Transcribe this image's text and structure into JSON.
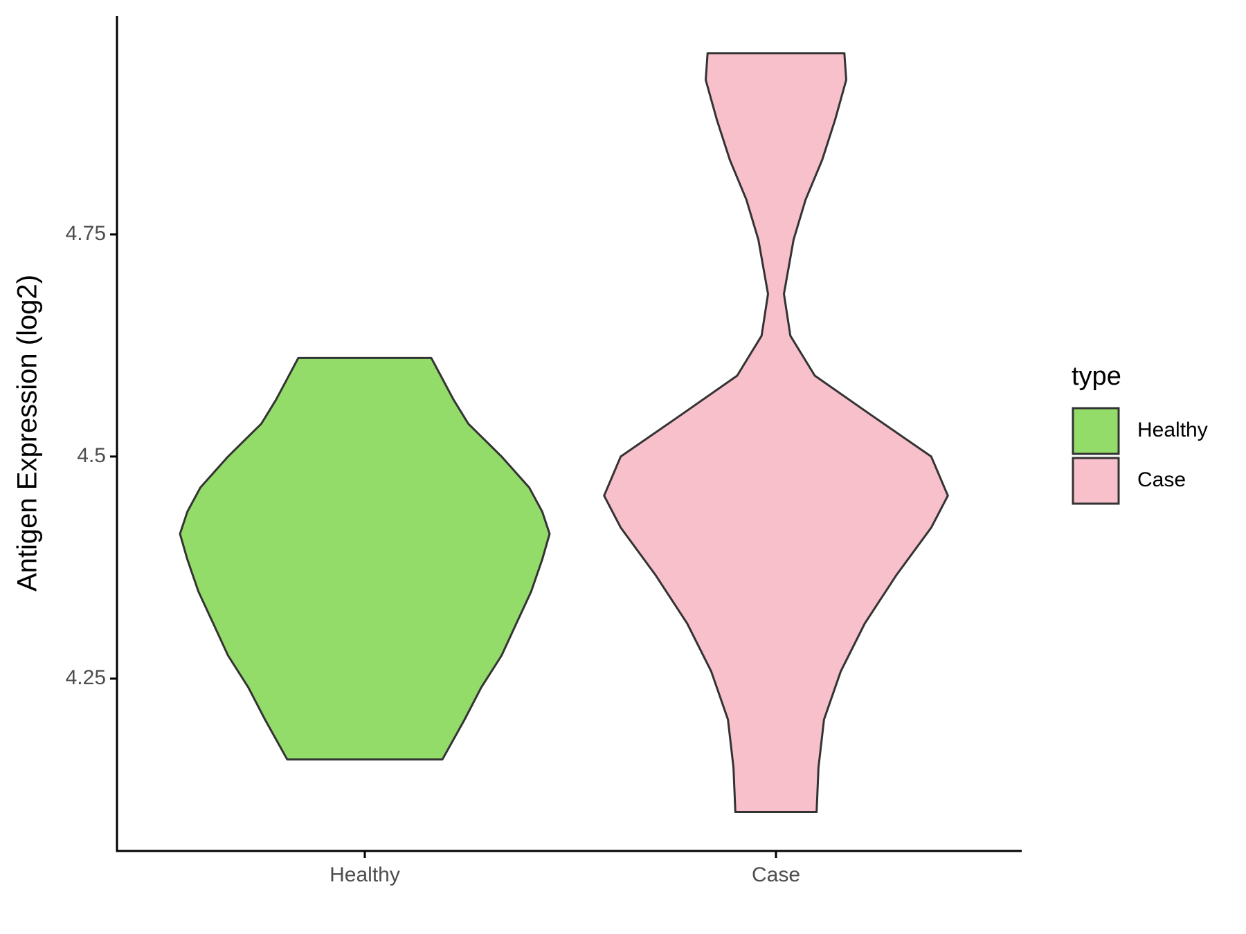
{
  "chart_data": {
    "type": "violin",
    "y_label": "Antigen Expression (log2)",
    "categories": [
      "Healthy",
      "Case"
    ],
    "ylim": [
      4.056,
      4.996
    ],
    "yticks": [
      4.25,
      4.5,
      4.75
    ],
    "legend_title": "type",
    "legend_position": "right",
    "series": [
      {
        "name": "Healthy",
        "color": "#93dc6a",
        "values": [
          4.611,
          4.564,
          4.537,
          4.5,
          4.465,
          4.438,
          4.413,
          4.384,
          4.348,
          4.312,
          4.276,
          4.24,
          4.204,
          4.159
        ],
        "density": [
          0.36,
          0.48,
          0.56,
          0.74,
          0.89,
          0.96,
          1.0,
          0.96,
          0.9,
          0.82,
          0.74,
          0.63,
          0.54,
          0.42
        ]
      },
      {
        "name": "Case",
        "color": "#f7c0cb",
        "values": [
          4.954,
          4.924,
          4.879,
          4.834,
          4.789,
          4.744,
          4.683,
          4.636,
          4.591,
          4.546,
          4.5,
          4.456,
          4.42,
          4.366,
          4.312,
          4.258,
          4.204,
          4.15,
          4.1
        ],
        "density": [
          0.37,
          0.38,
          0.32,
          0.25,
          0.16,
          0.095,
          0.043,
          0.078,
          0.21,
          0.52,
          0.84,
          0.93,
          0.84,
          0.65,
          0.48,
          0.35,
          0.26,
          0.23,
          0.22
        ]
      }
    ]
  }
}
